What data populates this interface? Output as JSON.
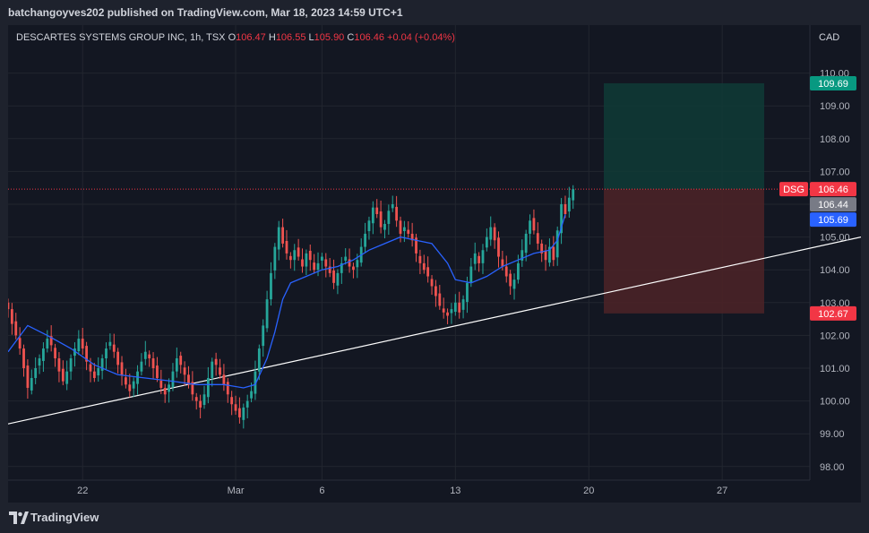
{
  "header": {
    "publish_line": "batchangoyves202 published on TradingView.com, Mar 18, 2023 14:59 UTC+1"
  },
  "legend": {
    "symbol": "DESCARTES SYSTEMS GROUP INC, 1h, TSX",
    "o_label": "O",
    "o_value": "106.47",
    "h_label": "H",
    "h_value": "106.55",
    "l_label": "L",
    "l_value": "105.90",
    "c_label": "C",
    "c_value": "106.46",
    "change": "+0.04 (+0.04%)"
  },
  "currency": "CAD",
  "footer": {
    "brand": "TradingView"
  },
  "colors": {
    "up": "#26a69a",
    "down": "#ef5350",
    "ma": "#2962ff",
    "trendline": "#ffffff",
    "target_zone": "#0f3b36",
    "stop_zone": "#4a2227",
    "target_badge": "#089981",
    "stop_badge": "#f23645",
    "ma_badge": "#2962ff",
    "prev_close_badge": "#787b86",
    "symbol_badge": "#f23645"
  },
  "chart_data": {
    "type": "candlestick",
    "title": "DESCARTES SYSTEMS GROUP INC, 1h, TSX",
    "y_unit": "CAD",
    "ylim": [
      97.6,
      111.1
    ],
    "y_ticks": [
      "98.00",
      "99.00",
      "100.00",
      "101.00",
      "102.00",
      "103.00",
      "104.00",
      "105.00",
      "106.00",
      "107.00",
      "108.00",
      "109.00",
      "110.00"
    ],
    "x_ticks": [
      "22",
      "Mar",
      "6",
      "13",
      "20",
      "27"
    ],
    "last_price": 106.46,
    "symbol_tag": "DSG",
    "price_badges": [
      {
        "label": "109.69",
        "value": 109.69,
        "kind": "target"
      },
      {
        "label": "106.46",
        "value": 106.46,
        "kind": "last"
      },
      {
        "label": "106.44",
        "value": 106.44,
        "kind": "prev"
      },
      {
        "label": "105.69",
        "value": 105.69,
        "kind": "ma"
      },
      {
        "label": "102.67",
        "value": 102.67,
        "kind": "stop"
      }
    ],
    "position": {
      "entry": 106.46,
      "target": 109.69,
      "stop": 102.67
    },
    "closes": [
      102.8,
      102.35,
      102.0,
      101.6,
      101.0,
      100.4,
      100.7,
      101.0,
      101.3,
      101.6,
      101.9,
      101.7,
      101.3,
      100.9,
      100.6,
      100.9,
      101.3,
      101.6,
      101.9,
      101.6,
      101.2,
      100.9,
      100.7,
      101.0,
      101.3,
      101.6,
      101.8,
      101.5,
      101.1,
      100.8,
      100.5,
      100.3,
      100.6,
      100.9,
      101.2,
      101.5,
      101.3,
      101.0,
      100.7,
      100.4,
      100.2,
      100.5,
      100.9,
      101.3,
      101.1,
      100.8,
      100.5,
      100.2,
      100.0,
      99.8,
      100.2,
      100.7,
      101.2,
      101.1,
      100.8,
      100.5,
      100.2,
      99.9,
      99.7,
      99.5,
      99.8,
      100.0,
      100.3,
      100.9,
      101.6,
      102.3,
      103.1,
      103.9,
      104.7,
      105.3,
      104.8,
      104.5,
      104.3,
      104.6,
      104.4,
      104.1,
      104.5,
      104.3,
      104.0,
      104.2,
      104.4,
      104.1,
      103.9,
      103.6,
      103.9,
      104.2,
      104.4,
      104.1,
      104.0,
      104.3,
      104.7,
      105.1,
      105.5,
      105.9,
      105.7,
      105.3,
      105.4,
      105.8,
      106.0,
      105.5,
      105.1,
      105.3,
      105.1,
      104.9,
      104.5,
      104.2,
      104.0,
      103.8,
      103.5,
      103.2,
      102.9,
      102.7,
      102.6,
      102.8,
      103.0,
      102.7,
      103.1,
      103.6,
      104.1,
      104.5,
      104.2,
      104.6,
      105.0,
      105.3,
      104.9,
      104.4,
      104.1,
      103.8,
      103.5,
      103.7,
      104.2,
      104.6,
      105.1,
      105.5,
      105.2,
      104.8,
      104.5,
      104.3,
      104.7,
      104.3,
      105.2,
      106.0,
      105.7,
      106.2,
      106.46
    ],
    "ma_x": [
      0,
      5,
      10,
      16,
      22,
      28,
      35,
      42,
      48,
      55,
      60,
      63,
      66,
      68,
      70,
      72,
      76,
      80,
      84,
      88,
      92,
      96,
      100,
      104,
      108,
      112,
      114,
      118,
      122,
      126,
      130,
      134,
      138,
      140,
      142
    ],
    "ma_values": [
      101.5,
      102.3,
      102.0,
      101.6,
      101.1,
      100.8,
      100.7,
      100.6,
      100.5,
      100.5,
      100.4,
      100.5,
      101.3,
      102.1,
      103.1,
      103.6,
      103.8,
      104.0,
      104.1,
      104.3,
      104.6,
      104.8,
      105.0,
      104.9,
      104.8,
      104.2,
      103.7,
      103.6,
      103.8,
      104.1,
      104.3,
      104.5,
      104.6,
      104.9,
      105.69
    ],
    "trendline": [
      {
        "x": 0,
        "y": 99.3
      },
      {
        "x": 225,
        "y": 105.2
      }
    ],
    "n_bars_to_last": 141,
    "x_tick_bars": [
      19,
      58,
      80,
      114,
      148,
      182
    ]
  }
}
